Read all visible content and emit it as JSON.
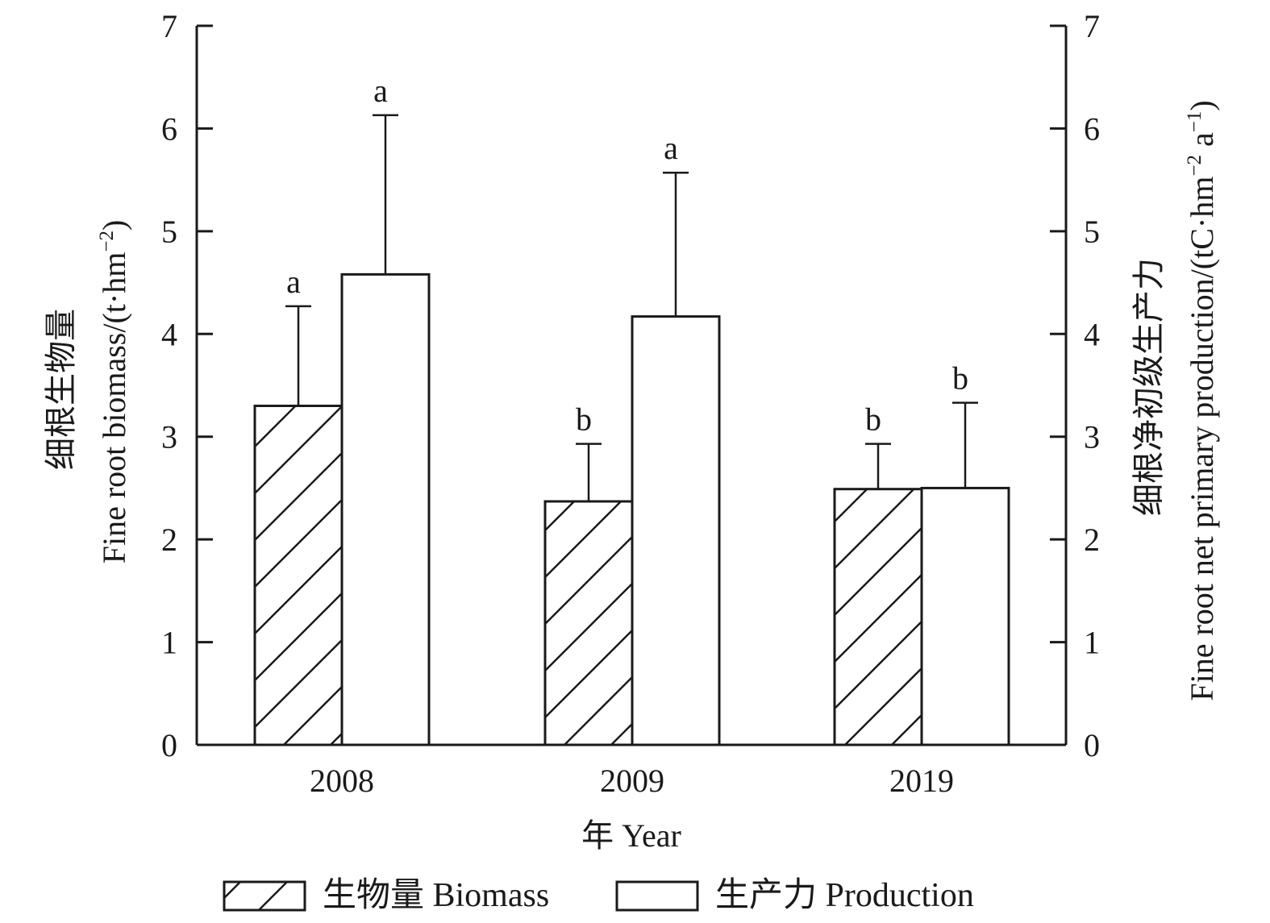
{
  "chart_data": {
    "type": "bar",
    "categories": [
      "2008",
      "2009",
      "2019"
    ],
    "series": [
      {
        "name": "生物量 Biomass",
        "pattern": "hatch",
        "values": [
          3.3,
          2.37,
          2.49
        ],
        "errors": [
          0.97,
          0.56,
          0.44
        ],
        "letters": [
          "a",
          "b",
          "b"
        ]
      },
      {
        "name": "生产力 Production",
        "pattern": "none",
        "values": [
          4.58,
          4.17,
          2.5
        ],
        "errors": [
          1.55,
          1.4,
          0.83
        ],
        "letters": [
          "a",
          "a",
          "b"
        ]
      }
    ],
    "xlabel": "年 Year",
    "ylabel_left_cn": "细根生物量",
    "ylabel_left_en": "Fine root biomass/(t·hm",
    "ylabel_left_sup": "−2",
    "ylabel_left_end": ")",
    "ylabel_right_cn": "细根净初级生产力",
    "ylabel_right_en": "Fine root net primary production/(tC·hm",
    "ylabel_right_sup1": "−2",
    "ylabel_right_mid": " a",
    "ylabel_right_sup2": "−1",
    "ylabel_right_end": ")",
    "ylim": [
      0,
      7
    ],
    "yticks": [
      "0",
      "1",
      "2",
      "3",
      "4",
      "5",
      "6",
      "7"
    ],
    "legend_position": "bottom",
    "colors": {
      "axis": "#1a1a1a",
      "fill": "#ffffff"
    }
  }
}
